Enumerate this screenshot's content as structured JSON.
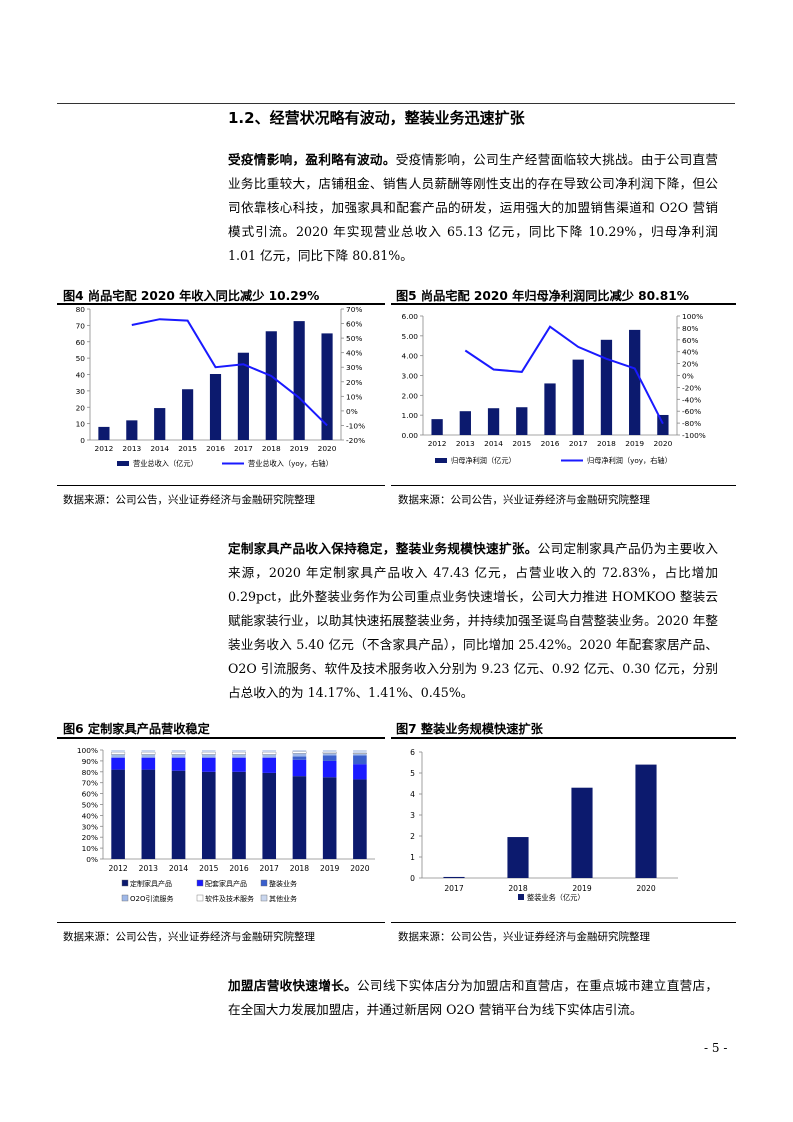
{
  "section": {
    "heading": "1.2、经营状况略有波动，整装业务迅速扩张"
  },
  "paragraphs": [
    {
      "lead": "受疫情影响，盈利略有波动。",
      "body": "受疫情影响，公司生产经营面临较大挑战。由于公司直营业务比重较大，店铺租金、销售人员薪酬等刚性支出的存在导致公司净利润下降，但公司依靠核心科技，加强家具和配套产品的研发，运用强大的加盟销售渠道和 O2O 营销模式引流。2020 年实现营业总收入 65.13 亿元，同比下降 10.29%，归母净利润 1.01 亿元，同比下降 80.81%。"
    },
    {
      "lead": "定制家具产品收入保持稳定，整装业务规模快速扩张。",
      "body": "公司定制家具产品仍为主要收入来源，2020 年定制家具产品收入 47.43 亿元，占营业收入的 72.83%，占比增加 0.29pct，此外整装业务作为公司重点业务快速增长，公司大力推进 HOMKOO 整装云赋能家装行业，以助其快速拓展整装业务，并持续加强圣诞鸟自营整装业务。2020 年整装业务收入 5.40 亿元（不含家具产品），同比增加 25.42%。2020 年配套家居产品、O2O 引流服务、软件及技术服务收入分别为 9.23 亿元、0.92 亿元、0.30 亿元，分别占总收入的为 14.17%、1.41%、0.45%。"
    },
    {
      "lead": "加盟店营收快速增长。",
      "body": "公司线下实体店分为加盟店和直营店，在重点城市建立直营店，在全国大力发展加盟店，并通过新居网 O2O 营销平台为线下实体店引流。"
    }
  ],
  "figures": {
    "fig4": {
      "title": "图4  尚品宅配 2020 年收入同比减少 10.29%",
      "source": "数据来源：公司公告，兴业证券经济与金融研究院整理"
    },
    "fig5": {
      "title": "图5  尚品宅配 2020 年归母净利润同比减少 80.81%",
      "source": "数据来源：公司公告，兴业证券经济与金融研究院整理"
    },
    "fig6": {
      "title": "图6  定制家具产品营收稳定",
      "source": "数据来源：公司公告，兴业证券经济与金融研究院整理"
    },
    "fig7": {
      "title": "图7  整装业务规模快速扩张",
      "source": "数据来源：公司公告，兴业证券经济与金融研究院整理"
    }
  },
  "page_number": "- 5 -",
  "colors": {
    "navy": "#0c1a6e",
    "blue": "#1a1aff",
    "mid_blue": "#3a5fcd",
    "light_blue": "#9fb8e8",
    "pale": "#c9d6ee"
  },
  "chart_data": [
    {
      "id": "fig4",
      "type": "bar+line",
      "categories": [
        "2012",
        "2013",
        "2014",
        "2015",
        "2016",
        "2017",
        "2018",
        "2019",
        "2020"
      ],
      "series": [
        {
          "name": "营业总收入（亿元）",
          "type": "bar",
          "axis": "left",
          "values": [
            8,
            12,
            19.5,
            31,
            40.3,
            53.3,
            66.4,
            72.6,
            65.1
          ]
        },
        {
          "name": "营业总收入（yoy，右轴）",
          "type": "line",
          "axis": "right",
          "values": [
            null,
            59,
            63,
            62,
            30,
            32,
            24,
            9,
            -10
          ]
        }
      ],
      "y_left": {
        "min": 0,
        "max": 80,
        "ticks": [
          "0",
          "10",
          "20",
          "30",
          "40",
          "50",
          "60",
          "70",
          "80"
        ]
      },
      "y_right": {
        "min": -20,
        "max": 70,
        "ticks": [
          "-20%",
          "-10%",
          "0%",
          "10%",
          "20%",
          "30%",
          "40%",
          "50%",
          "60%",
          "70%"
        ]
      }
    },
    {
      "id": "fig5",
      "type": "bar+line",
      "categories": [
        "2012",
        "2013",
        "2014",
        "2015",
        "2016",
        "2017",
        "2018",
        "2019",
        "2020"
      ],
      "series": [
        {
          "name": "归母净利润（亿元）",
          "type": "bar",
          "axis": "left",
          "values": [
            0.8,
            1.2,
            1.35,
            1.4,
            2.6,
            3.8,
            4.8,
            5.3,
            1.01
          ]
        },
        {
          "name": "归母净利润（yoy，右轴）",
          "type": "line",
          "axis": "right",
          "values": [
            null,
            42,
            10,
            6,
            82,
            48,
            28,
            12,
            -81
          ]
        }
      ],
      "y_left": {
        "min": 0,
        "max": 6,
        "ticks": [
          "0.00",
          "1.00",
          "2.00",
          "3.00",
          "4.00",
          "5.00",
          "6.00"
        ]
      },
      "y_right": {
        "min": -100,
        "max": 100,
        "ticks": [
          "-100%",
          "-80%",
          "-60%",
          "-40%",
          "-20%",
          "0%",
          "20%",
          "40%",
          "60%",
          "80%",
          "100%"
        ]
      }
    },
    {
      "id": "fig6",
      "type": "stacked-bar-100",
      "categories": [
        "2012",
        "2013",
        "2014",
        "2015",
        "2016",
        "2017",
        "2018",
        "2019",
        "2020"
      ],
      "series": [
        {
          "name": "定制家具产品",
          "values": [
            82,
            82,
            81,
            80,
            80,
            79,
            76,
            75,
            73
          ]
        },
        {
          "name": "配套家具产品",
          "values": [
            11,
            11,
            12,
            13,
            13,
            14,
            15,
            15,
            14
          ]
        },
        {
          "name": "整装业务",
          "values": [
            0,
            0,
            0,
            0,
            0,
            0,
            3,
            5,
            8
          ]
        },
        {
          "name": "O2O引流服务",
          "values": [
            3,
            3,
            3,
            3,
            3,
            3,
            3,
            2,
            1.5
          ]
        },
        {
          "name": "软件及技术服务",
          "values": [
            2,
            2,
            2,
            2,
            2,
            2,
            1.5,
            1,
            0.5
          ]
        },
        {
          "name": "其他业务",
          "values": [
            2,
            2,
            2,
            2,
            2,
            2,
            1.5,
            2,
            3
          ]
        }
      ],
      "y": {
        "ticks": [
          "0%",
          "10%",
          "20%",
          "30%",
          "40%",
          "50%",
          "60%",
          "70%",
          "80%",
          "90%",
          "100%"
        ]
      }
    },
    {
      "id": "fig7",
      "type": "bar",
      "categories": [
        "2017",
        "2018",
        "2019",
        "2020"
      ],
      "series": [
        {
          "name": "整装业务（亿元）",
          "values": [
            0.05,
            1.95,
            4.3,
            5.4
          ]
        }
      ],
      "y": {
        "min": 0,
        "max": 6,
        "ticks": [
          "0",
          "1",
          "2",
          "3",
          "4",
          "5",
          "6"
        ]
      }
    }
  ]
}
